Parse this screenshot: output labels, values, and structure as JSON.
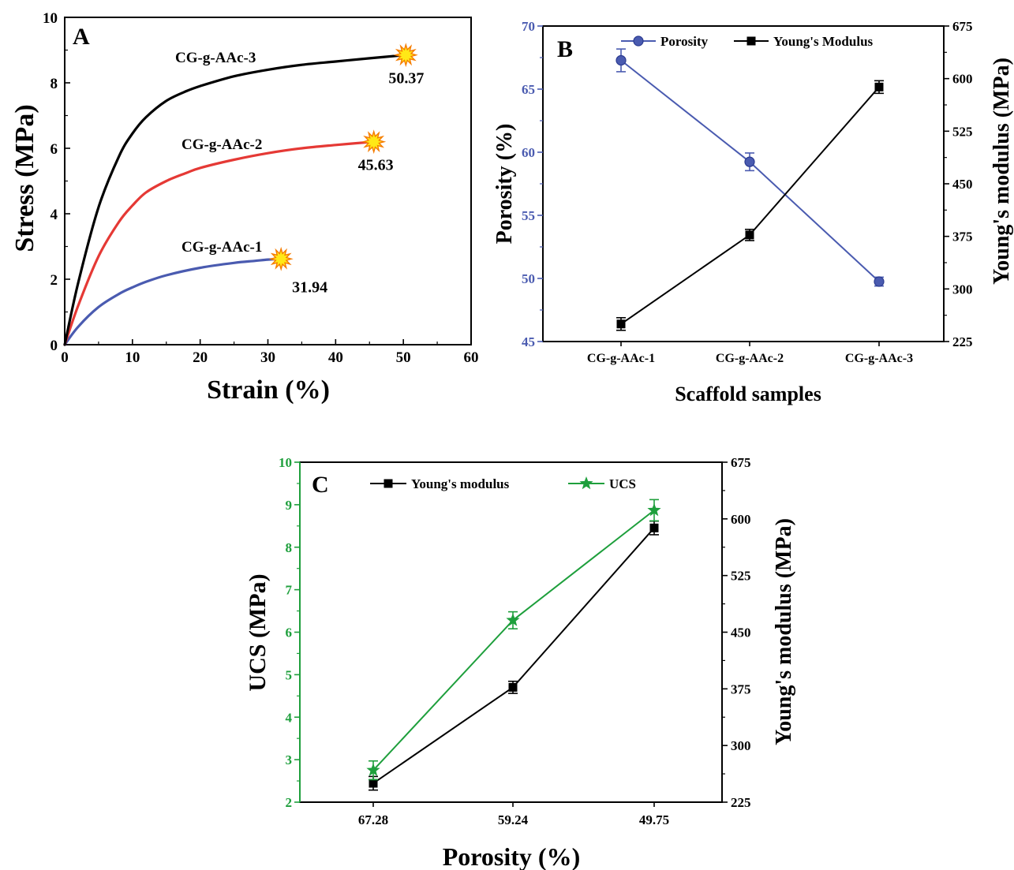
{
  "colors": {
    "axis": "#000000",
    "series1": "#4a5bb0",
    "series2": "#e53935",
    "series3": "#000000",
    "ucs": "#1e9f3c",
    "star_fill": "#ffe817",
    "star_stroke": "#f57c00"
  },
  "chart_data": [
    {
      "panel": "A",
      "type": "line",
      "title": "",
      "xlabel": "Strain (%)",
      "ylabel": "Stress (MPa)",
      "xlim": [
        0,
        60
      ],
      "ylim": [
        0,
        10
      ],
      "xticks": [
        0,
        10,
        20,
        30,
        40,
        50,
        60
      ],
      "yticks": [
        0,
        2,
        4,
        6,
        8,
        10
      ],
      "series": [
        {
          "name": "CG-g-AAc-1",
          "color_key": "series1",
          "x": [
            0,
            2,
            5,
            8,
            10,
            12,
            15,
            20,
            25,
            28,
            30,
            31.94
          ],
          "y": [
            0,
            0.55,
            1.15,
            1.55,
            1.75,
            1.92,
            2.12,
            2.35,
            2.5,
            2.56,
            2.6,
            2.62
          ],
          "annotation": "31.94"
        },
        {
          "name": "CG-g-AAc-2",
          "color_key": "series2",
          "x": [
            0,
            2,
            5,
            8,
            10,
            12,
            15,
            18,
            20,
            25,
            30,
            35,
            40,
            45.63
          ],
          "y": [
            0,
            1.2,
            2.7,
            3.75,
            4.25,
            4.65,
            5.0,
            5.25,
            5.4,
            5.65,
            5.85,
            6.0,
            6.1,
            6.2
          ],
          "annotation": "45.63"
        },
        {
          "name": "CG-g-AAc-3",
          "color_key": "series3",
          "x": [
            0,
            2,
            5,
            8,
            10,
            12,
            15,
            18,
            20,
            25,
            30,
            35,
            40,
            45,
            50.37
          ],
          "y": [
            0,
            1.9,
            4.2,
            5.75,
            6.45,
            6.95,
            7.45,
            7.75,
            7.9,
            8.2,
            8.4,
            8.55,
            8.65,
            8.75,
            8.85
          ],
          "annotation": "50.37"
        }
      ]
    },
    {
      "panel": "B",
      "type": "line",
      "title": "",
      "xlabel": "Scaffold samples",
      "ylabel_left": "Porosity (%)",
      "ylabel_right": "Young's modulus (MPa)",
      "categories": [
        "CG-g-AAc-1",
        "CG-g-AAc-2",
        "CG-g-AAc-3"
      ],
      "ylim_left": [
        45,
        70
      ],
      "yticks_left": [
        45,
        50,
        55,
        60,
        65,
        70
      ],
      "ylim_right": [
        225,
        675
      ],
      "yticks_right": [
        225,
        300,
        375,
        450,
        525,
        600,
        675
      ],
      "legend": "top",
      "series": [
        {
          "name": "Porosity",
          "axis": "left",
          "marker": "circle",
          "color_key": "series1",
          "values": [
            67.28,
            59.24,
            49.75
          ],
          "errors": [
            0.9,
            0.7,
            0.35
          ]
        },
        {
          "name": "Young's Modulus",
          "axis": "right",
          "marker": "square",
          "color_key": "series3",
          "values": [
            250,
            377,
            588
          ],
          "errors": [
            9,
            8,
            9
          ]
        }
      ]
    },
    {
      "panel": "C",
      "type": "line",
      "title": "",
      "xlabel": "Porosity (%)",
      "ylabel_left": "UCS (MPa)",
      "ylabel_right": "Young's modulus (MPa)",
      "categories": [
        "67.28",
        "59.24",
        "49.75"
      ],
      "ylim_left": [
        2,
        10
      ],
      "yticks_left": [
        2,
        3,
        4,
        5,
        6,
        7,
        8,
        9,
        10
      ],
      "ylim_right": [
        225,
        675
      ],
      "yticks_right": [
        225,
        300,
        375,
        450,
        525,
        600,
        675
      ],
      "legend": "top",
      "series": [
        {
          "name": "Young's modulus",
          "axis": "right",
          "marker": "square",
          "color_key": "series3",
          "values": [
            250,
            377,
            588
          ],
          "errors": [
            9,
            8,
            9
          ]
        },
        {
          "name": "UCS",
          "axis": "left",
          "marker": "star",
          "color_key": "ucs",
          "values": [
            2.75,
            6.28,
            8.87
          ],
          "errors": [
            0.22,
            0.2,
            0.25
          ]
        }
      ]
    }
  ]
}
